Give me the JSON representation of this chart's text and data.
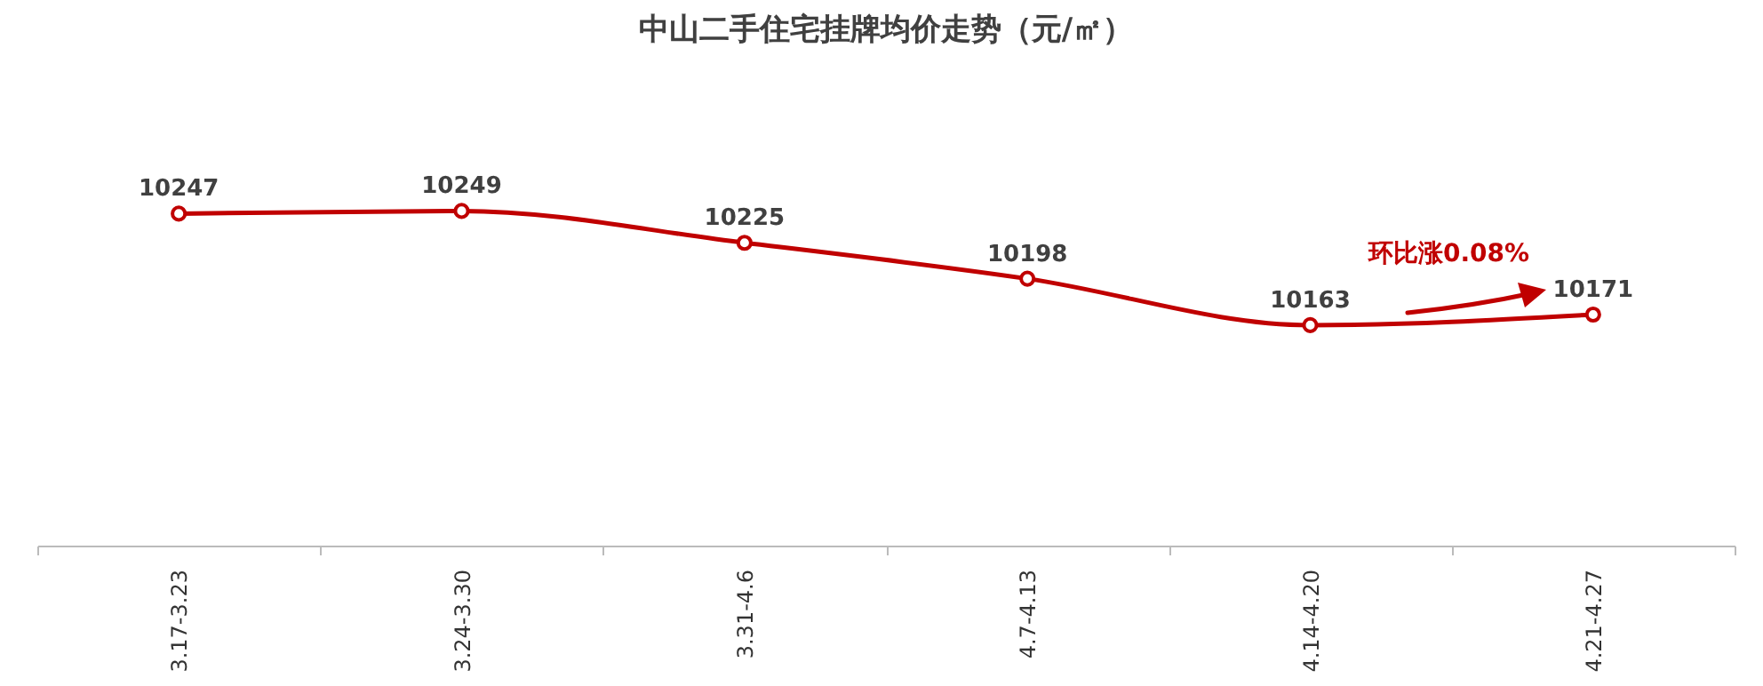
{
  "chart_data": {
    "type": "line",
    "title": "中山二手住宅挂牌均价走势（元/㎡）",
    "categories": [
      "3.17-3.23",
      "3.24-3.30",
      "3.31-4.6",
      "4.7-4.13",
      "4.14-4.20",
      "4.21-4.27"
    ],
    "series": [
      {
        "color": "#c00000",
        "values": [
          10247,
          10249,
          10225,
          10198,
          10163,
          10171
        ]
      }
    ],
    "data_labels": true,
    "marker": "circle",
    "line_style": "solid",
    "grid": false,
    "legend": false,
    "annotations": [
      "环比涨0.08%"
    ]
  }
}
